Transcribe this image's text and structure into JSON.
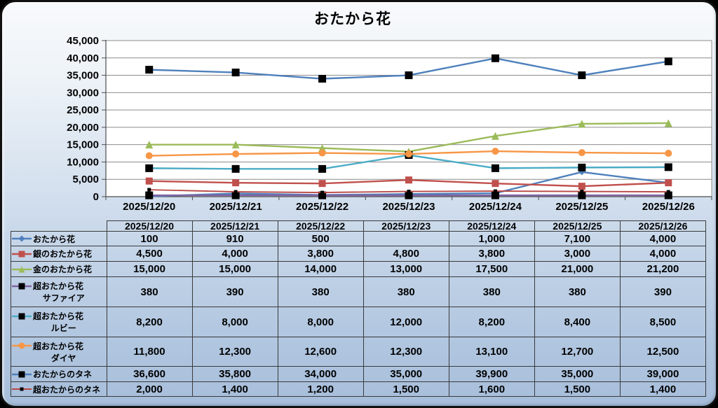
{
  "title": "おたから花",
  "chart_data": {
    "type": "line",
    "title": "おたから花",
    "categories": [
      "2025/12/20",
      "2025/12/21",
      "2025/12/22",
      "2025/12/23",
      "2025/12/24",
      "2025/12/25",
      "2025/12/26"
    ],
    "series": [
      {
        "name": "おたから花",
        "name2": "",
        "color": "#4e80bc",
        "marker": "diamond",
        "marker_color": "#4e80bc",
        "marker_size": 9,
        "line_width": 2.4,
        "values": [
          100,
          910,
          500,
          null,
          1000,
          7100,
          4000
        ]
      },
      {
        "name": "銀のおたから花",
        "name2": "",
        "color": "#c0504d",
        "marker": "square",
        "marker_color": "#c0504d",
        "marker_size": 10,
        "line_width": 2.4,
        "values": [
          4500,
          4000,
          3800,
          4800,
          3800,
          3000,
          4000
        ]
      },
      {
        "name": "金のおたから花",
        "name2": "",
        "color": "#9bbb59",
        "marker": "triangle",
        "marker_color": "#9bbb59",
        "marker_size": 11,
        "line_width": 2.4,
        "values": [
          15000,
          15000,
          14000,
          13000,
          17500,
          21000,
          21200
        ]
      },
      {
        "name": "超おたから花",
        "name2": "サファイア",
        "color": "#8064a2",
        "marker": "square",
        "marker_color": "#000000",
        "marker_size": 11,
        "line_width": 2.4,
        "values": [
          380,
          390,
          380,
          380,
          380,
          380,
          390
        ]
      },
      {
        "name": "超おたから花",
        "name2": "ルビー",
        "color": "#4bacc6",
        "marker": "square",
        "marker_color": "#000000",
        "marker_size": 11,
        "line_width": 2.4,
        "values": [
          8200,
          8000,
          8000,
          12000,
          8200,
          8400,
          8500
        ]
      },
      {
        "name": "超おたから花",
        "name2": "ダイヤ",
        "color": "#f79646",
        "marker": "circle",
        "marker_color": "#f79646",
        "marker_size": 10,
        "line_width": 2.4,
        "values": [
          11800,
          12300,
          12600,
          12300,
          13100,
          12700,
          12500
        ]
      },
      {
        "name": "おたからのタネ",
        "name2": "",
        "color": "#4e80bc",
        "marker": "square",
        "marker_color": "#000000",
        "marker_size": 11,
        "line_width": 2.4,
        "values": [
          36600,
          35800,
          34000,
          35000,
          39900,
          35000,
          39000
        ]
      },
      {
        "name": "超おたからのタネ",
        "name2": "",
        "color": "#b84744",
        "marker": "square",
        "marker_color": "#000000",
        "marker_size": 5,
        "line_width": 1.8,
        "values": [
          2000,
          1400,
          1200,
          1500,
          1600,
          1500,
          1400
        ]
      }
    ],
    "ylim": [
      0,
      45000
    ],
    "ytick_step": 5000,
    "ytick_labels": [
      "0",
      "5,000",
      "10,000",
      "15,000",
      "20,000",
      "25,000",
      "30,000",
      "35,000",
      "40,000",
      "45,000"
    ],
    "grid": true,
    "legend_position": "table-rows-left",
    "missing_values": "interpolated",
    "number_format": "#,##0"
  },
  "colors": {
    "background_top": "#f8fafc",
    "background_bottom": "#a7bedb",
    "canvas_border": "#111111",
    "plot_background": "#ffffff",
    "gridline": "#8c8c8c",
    "axis": "#4d4d4d",
    "table_border": "#3a3a3a",
    "text": "#000000"
  }
}
